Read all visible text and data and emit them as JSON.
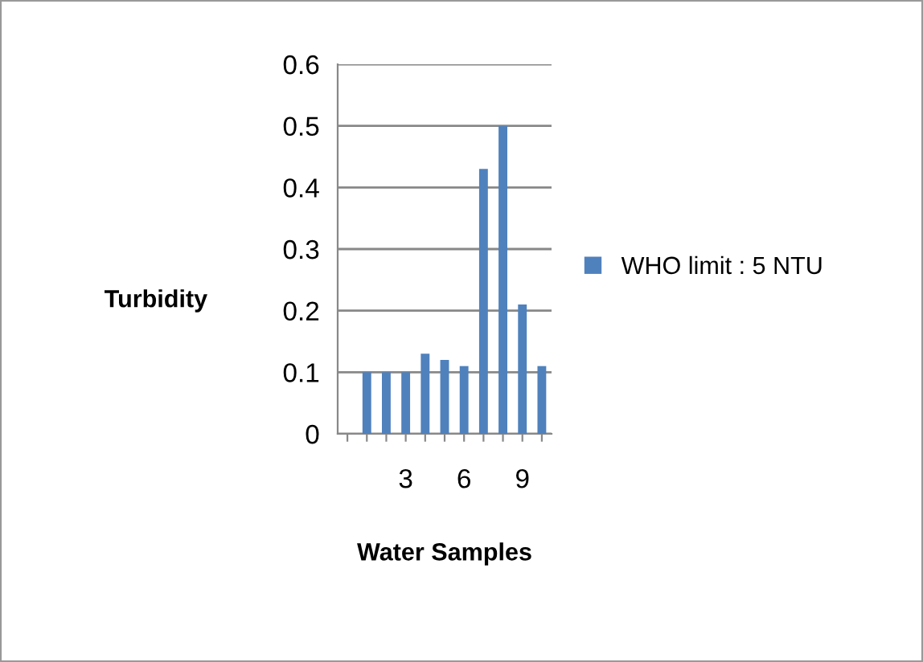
{
  "chart_data": {
    "type": "bar",
    "xlabel": "Water Samples",
    "ylabel": "Turbidity",
    "categories": [
      null,
      null,
      null,
      "3",
      null,
      null,
      "6",
      null,
      null,
      "9",
      null
    ],
    "series": [
      {
        "name": "WHO limit : 5 NTU",
        "color": "#4f81bd",
        "values": [
          null,
          0.1,
          0.1,
          0.1,
          0.13,
          0.12,
          0.11,
          0.43,
          0.5,
          0.21,
          0.11
        ]
      }
    ],
    "ylim": [
      0,
      0.6
    ],
    "yticks": [
      {
        "value": 0,
        "label": "0"
      },
      0.1,
      0.2,
      0.3,
      0.4,
      0.5,
      0.6
    ],
    "grid": "y",
    "legend": "right"
  }
}
